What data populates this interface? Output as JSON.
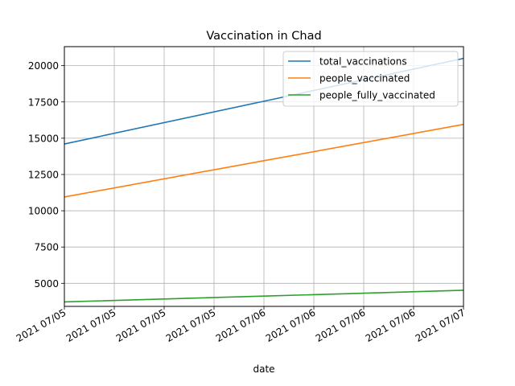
{
  "chart_data": {
    "type": "line",
    "title": "Vaccination in Chad",
    "xlabel": "date",
    "ylabel": "",
    "x": [
      0,
      1,
      2
    ],
    "xlim": [
      0,
      2
    ],
    "ylim": [
      3410,
      21310
    ],
    "x_ticks": [
      {
        "x": 0,
        "label": "2021 07/05"
      },
      {
        "x": 0.25,
        "label": "2021 07/05"
      },
      {
        "x": 0.5,
        "label": "2021 07/05"
      },
      {
        "x": 0.75,
        "label": "2021 07/05"
      },
      {
        "x": 1.0,
        "label": "2021 07/06"
      },
      {
        "x": 1.25,
        "label": "2021 07/06"
      },
      {
        "x": 1.5,
        "label": "2021 07/06"
      },
      {
        "x": 1.75,
        "label": "2021 07/06"
      },
      {
        "x": 2.0,
        "label": "2021 07/07"
      }
    ],
    "y_ticks": [
      {
        "y": 5000,
        "label": "5000"
      },
      {
        "y": 7500,
        "label": "7500"
      },
      {
        "y": 10000,
        "label": "10000"
      },
      {
        "y": 12500,
        "label": "12500"
      },
      {
        "y": 15000,
        "label": "15000"
      },
      {
        "y": 17500,
        "label": "17500"
      },
      {
        "y": 20000,
        "label": "20000"
      }
    ],
    "grid": true,
    "legend_position": "top-right",
    "series": [
      {
        "name": "total_vaccinations",
        "color": "#1f77b4",
        "values": [
          14600,
          17550,
          20500
        ]
      },
      {
        "name": "people_vaccinated",
        "color": "#ff7f0e",
        "values": [
          10950,
          13450,
          15950
        ]
      },
      {
        "name": "people_fully_vaccinated",
        "color": "#2ca02c",
        "values": [
          3720,
          4120,
          4520
        ]
      }
    ]
  }
}
